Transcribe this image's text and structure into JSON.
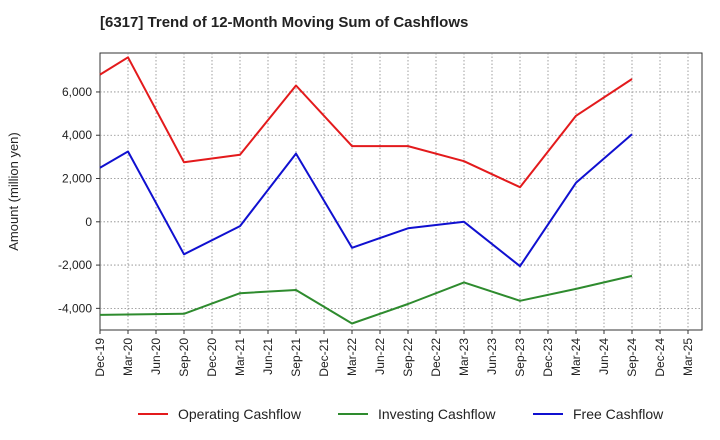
{
  "chart_data": {
    "type": "line",
    "title": "[6317]  Trend of 12-Month Moving Sum of Cashflows",
    "xlabel": "",
    "ylabel": "Amount (million yen)",
    "categories": [
      "Dec-19",
      "Mar-20",
      "Jun-20",
      "Sep-20",
      "Dec-20",
      "Mar-21",
      "Jun-21",
      "Sep-21",
      "Dec-21",
      "Mar-22",
      "Jun-22",
      "Sep-22",
      "Dec-22",
      "Mar-23",
      "Jun-23",
      "Sep-23",
      "Dec-23",
      "Mar-24",
      "Jun-24",
      "Sep-24",
      "Dec-24",
      "Mar-25"
    ],
    "y_ticks": [
      6000,
      4000,
      2000,
      0,
      -2000,
      -4000
    ],
    "y_tick_labels": [
      "6,000",
      "4,000",
      "2,000",
      "0",
      "-2,000",
      "-4,000"
    ],
    "ylim": [
      -5000,
      7800
    ],
    "grid": true,
    "legend_position": "bottom",
    "series": [
      {
        "name": "Operating Cashflow",
        "color": "#e31a1c",
        "values": [
          6800,
          7600,
          null,
          2750,
          null,
          3100,
          null,
          6300,
          null,
          3500,
          null,
          3500,
          null,
          2800,
          null,
          1600,
          null,
          4900,
          null,
          6600,
          null,
          null
        ]
      },
      {
        "name": "Investing Cashflow",
        "color": "#2e8b2e",
        "values": [
          -4300,
          null,
          null,
          -4250,
          null,
          -3300,
          null,
          -3150,
          null,
          -4700,
          null,
          -3800,
          null,
          -2800,
          null,
          -3650,
          null,
          -3100,
          null,
          -2500,
          null,
          null
        ]
      },
      {
        "name": "Free Cashflow",
        "color": "#1010d0",
        "values": [
          2500,
          3250,
          null,
          -1500,
          null,
          -200,
          null,
          3150,
          null,
          -1200,
          null,
          -300,
          null,
          0,
          null,
          -2050,
          null,
          1800,
          null,
          4050,
          null,
          null
        ]
      }
    ]
  }
}
